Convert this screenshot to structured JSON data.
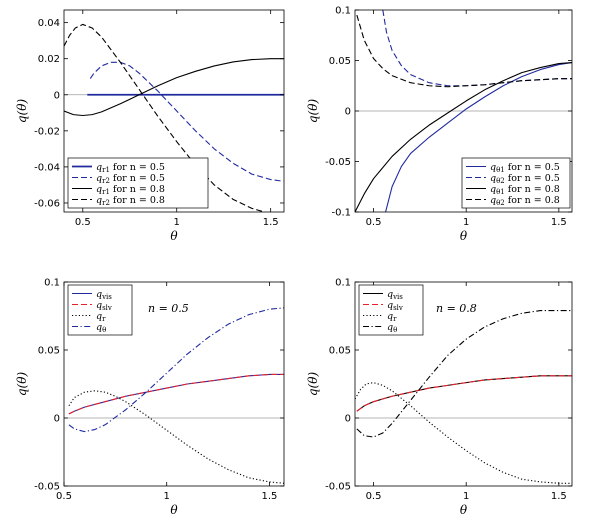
{
  "colors": {
    "navy": "#1f2a9e",
    "red": "#e8202a",
    "black": "#000000",
    "zero_line": "#9e9e9e"
  },
  "chart_data": [
    {
      "type": "line",
      "xlabel": "θ",
      "ylabel": "q(θ)",
      "xlim": [
        0.4,
        1.571
      ],
      "ylim": [
        -0.065,
        0.047
      ],
      "xticks": [
        0.5,
        1,
        1.5
      ],
      "xtick_labels": [
        "0.5",
        "1",
        "1.5"
      ],
      "yticks": [
        -0.06,
        -0.04,
        -0.02,
        0,
        0.02,
        0.04
      ],
      "ytick_labels": [
        "-0.06",
        "-0.04",
        "-0.02",
        "0",
        "0.02",
        "0.04"
      ],
      "zero_line": true,
      "legend": "bottom-left",
      "series": [
        {
          "name": "q_r1 for n = 0.5",
          "label_main": "q",
          "label_sub": "r1",
          "label_rest": " for n = 0.5",
          "color": "#1f2a9e",
          "dash": "solid",
          "width": 1.8,
          "x": [
            0.524,
            0.6,
            0.8,
            1.0,
            1.2,
            1.4,
            1.571
          ],
          "y": [
            0,
            0,
            0,
            0,
            0,
            0,
            0
          ]
        },
        {
          "name": "q_r2 for n = 0.5",
          "label_main": "q",
          "label_sub": "r2",
          "label_rest": " for n = 0.5",
          "color": "#1f2a9e",
          "dash": "dashed",
          "width": 1.1,
          "x": [
            0.54,
            0.56,
            0.6,
            0.65,
            0.7,
            0.75,
            0.8,
            0.9,
            1.0,
            1.1,
            1.2,
            1.3,
            1.4,
            1.5,
            1.571
          ],
          "y": [
            0.009,
            0.012,
            0.016,
            0.018,
            0.018,
            0.016,
            0.012,
            0.002,
            -0.009,
            -0.02,
            -0.03,
            -0.038,
            -0.044,
            -0.047,
            -0.048
          ]
        },
        {
          "name": "q_r1 for n = 0.8",
          "label_main": "q",
          "label_sub": "r1",
          "label_rest": " for n = 0.8",
          "color": "#000000",
          "dash": "solid",
          "width": 1.1,
          "x": [
            0.4,
            0.45,
            0.5,
            0.55,
            0.6,
            0.7,
            0.8,
            0.9,
            1.0,
            1.1,
            1.2,
            1.3,
            1.4,
            1.5,
            1.571
          ],
          "y": [
            -0.009,
            -0.011,
            -0.0115,
            -0.011,
            -0.0095,
            -0.005,
            0,
            0.005,
            0.0095,
            0.013,
            0.016,
            0.0182,
            0.0195,
            0.02,
            0.02
          ]
        },
        {
          "name": "q_r2 for n = 0.8",
          "label_main": "q",
          "label_sub": "r2",
          "label_rest": " for n = 0.8",
          "color": "#000000",
          "dash": "dashed",
          "width": 1.1,
          "x": [
            0.4,
            0.43,
            0.46,
            0.5,
            0.55,
            0.6,
            0.7,
            0.8,
            0.9,
            1.0,
            1.1,
            1.2,
            1.3,
            1.4,
            1.5,
            1.571
          ],
          "y": [
            0.027,
            0.033,
            0.037,
            0.039,
            0.037,
            0.032,
            0.018,
            0.003,
            -0.012,
            -0.026,
            -0.039,
            -0.05,
            -0.058,
            -0.063,
            -0.066,
            -0.067
          ]
        }
      ]
    },
    {
      "type": "line",
      "xlabel": "θ",
      "ylabel": "q(θ)",
      "xlim": [
        0.4,
        1.571
      ],
      "ylim": [
        -0.1,
        0.1
      ],
      "xticks": [
        0.5,
        1,
        1.5
      ],
      "xtick_labels": [
        "0.5",
        "1",
        "1.5"
      ],
      "yticks": [
        -0.1,
        -0.05,
        0,
        0.05,
        0.1
      ],
      "ytick_labels": [
        "-0.1",
        "-0.05",
        "0",
        "0.05",
        "0.1"
      ],
      "zero_line": true,
      "legend": "bottom-right",
      "series": [
        {
          "name": "q_θ1 for n = 0.5",
          "label_main": "q",
          "label_sub": "θ1",
          "label_rest": " for n = 0.5",
          "color": "#1f2a9e",
          "dash": "solid",
          "width": 1.1,
          "x": [
            0.565,
            0.6,
            0.65,
            0.7,
            0.8,
            0.9,
            1.0,
            1.1,
            1.2,
            1.3,
            1.4,
            1.5,
            1.571
          ],
          "y": [
            -0.1,
            -0.075,
            -0.055,
            -0.042,
            -0.026,
            -0.012,
            0.002,
            0.014,
            0.025,
            0.034,
            0.041,
            0.046,
            0.048
          ]
        },
        {
          "name": "q_θ2 for n = 0.5",
          "label_main": "q",
          "label_sub": "θ2",
          "label_rest": " for n = 0.5",
          "color": "#1f2a9e",
          "dash": "dashed",
          "width": 1.1,
          "x": [
            0.55,
            0.57,
            0.6,
            0.65,
            0.7,
            0.8,
            0.9,
            1.0,
            1.1,
            1.2,
            1.3,
            1.4,
            1.5,
            1.571
          ],
          "y": [
            0.1,
            0.078,
            0.06,
            0.045,
            0.036,
            0.028,
            0.025,
            0.025,
            0.026,
            0.028,
            0.03,
            0.031,
            0.032,
            0.032
          ]
        },
        {
          "name": "q_θ1 for n = 0.8",
          "label_main": "q",
          "label_sub": "θ1",
          "label_rest": " for n = 0.8",
          "color": "#000000",
          "dash": "solid",
          "width": 1.1,
          "x": [
            0.4,
            0.45,
            0.5,
            0.6,
            0.7,
            0.8,
            0.9,
            1.0,
            1.1,
            1.2,
            1.3,
            1.4,
            1.5,
            1.571
          ],
          "y": [
            -0.1,
            -0.082,
            -0.067,
            -0.045,
            -0.028,
            -0.014,
            -0.002,
            0.01,
            0.021,
            0.03,
            0.038,
            0.043,
            0.047,
            0.048
          ]
        },
        {
          "name": "q_θ2 for n = 0.8",
          "label_main": "q",
          "label_sub": "θ2",
          "label_rest": " for n = 0.8",
          "color": "#000000",
          "dash": "dashed",
          "width": 1.1,
          "x": [
            0.41,
            0.45,
            0.5,
            0.55,
            0.6,
            0.7,
            0.8,
            0.9,
            1.0,
            1.1,
            1.2,
            1.3,
            1.4,
            1.5,
            1.571
          ],
          "y": [
            0.095,
            0.07,
            0.052,
            0.042,
            0.035,
            0.028,
            0.025,
            0.024,
            0.025,
            0.026,
            0.028,
            0.03,
            0.031,
            0.032,
            0.032
          ]
        }
      ]
    },
    {
      "type": "line",
      "xlabel": "θ",
      "ylabel": "q(θ)",
      "xlim": [
        0.5,
        1.571
      ],
      "ylim": [
        -0.05,
        0.1
      ],
      "xticks": [
        0.5,
        1,
        1.5
      ],
      "xtick_labels": [
        "0.5",
        "1",
        "1.5"
      ],
      "yticks": [
        -0.05,
        0,
        0.05,
        0.1
      ],
      "ytick_labels": [
        "-0.05",
        "0",
        "0.05",
        "0.1"
      ],
      "zero_line": true,
      "legend": "top-left",
      "annotation": "n = 0.5",
      "series": [
        {
          "name": "q_vis",
          "label_main": "q",
          "label_sub": "vis",
          "label_rest": "",
          "color": "#1f2a9e",
          "dash": "solid",
          "width": 1.1,
          "x": [
            0.524,
            0.55,
            0.6,
            0.7,
            0.8,
            0.9,
            1.0,
            1.1,
            1.2,
            1.3,
            1.4,
            1.5,
            1.571
          ],
          "y": [
            0.003,
            0.005,
            0.008,
            0.012,
            0.016,
            0.019,
            0.022,
            0.025,
            0.027,
            0.029,
            0.031,
            0.032,
            0.032
          ]
        },
        {
          "name": "q_slv",
          "label_main": "q",
          "label_sub": "slv",
          "label_rest": "",
          "color": "#e8202a",
          "dash": "dashed",
          "width": 1.1,
          "x": [
            0.524,
            0.55,
            0.6,
            0.7,
            0.8,
            0.9,
            1.0,
            1.1,
            1.2,
            1.3,
            1.4,
            1.5,
            1.571
          ],
          "y": [
            0.003,
            0.005,
            0.008,
            0.012,
            0.016,
            0.019,
            0.022,
            0.025,
            0.027,
            0.029,
            0.031,
            0.032,
            0.032
          ]
        },
        {
          "name": "q_r",
          "label_main": "q",
          "label_sub": "r",
          "label_rest": "",
          "color": "#000000",
          "dash": "dotted",
          "width": 1.1,
          "x": [
            0.524,
            0.55,
            0.6,
            0.65,
            0.7,
            0.75,
            0.8,
            0.9,
            1.0,
            1.1,
            1.2,
            1.3,
            1.4,
            1.5,
            1.571
          ],
          "y": [
            0.009,
            0.015,
            0.019,
            0.02,
            0.019,
            0.016,
            0.012,
            0.002,
            -0.009,
            -0.02,
            -0.03,
            -0.038,
            -0.044,
            -0.047,
            -0.048
          ]
        },
        {
          "name": "q_θ",
          "label_main": "q",
          "label_sub": "θ",
          "label_rest": "",
          "color": "#1f2a9e",
          "dash": "dashdot",
          "width": 1.1,
          "x": [
            0.524,
            0.55,
            0.6,
            0.65,
            0.7,
            0.8,
            0.9,
            1.0,
            1.1,
            1.2,
            1.3,
            1.4,
            1.5,
            1.571
          ],
          "y": [
            -0.005,
            -0.008,
            -0.01,
            -0.0085,
            -0.005,
            0.006,
            0.019,
            0.033,
            0.047,
            0.059,
            0.069,
            0.076,
            0.08,
            0.081
          ]
        }
      ]
    },
    {
      "type": "line",
      "xlabel": "θ",
      "ylabel": "q(θ)",
      "xlim": [
        0.4,
        1.571
      ],
      "ylim": [
        -0.05,
        0.1
      ],
      "xticks": [
        0.5,
        1,
        1.5
      ],
      "xtick_labels": [
        "0.5",
        "1",
        "1.5"
      ],
      "yticks": [
        -0.05,
        0,
        0.05,
        0.1
      ],
      "ytick_labels": [
        "-0.05",
        "0",
        "0.05",
        "0.1"
      ],
      "zero_line": true,
      "legend": "top-left",
      "annotation": "n = 0.8",
      "series": [
        {
          "name": "q_vis",
          "label_main": "q",
          "label_sub": "vis",
          "label_rest": "",
          "color": "#000000",
          "dash": "solid",
          "width": 1.1,
          "x": [
            0.41,
            0.45,
            0.5,
            0.6,
            0.7,
            0.8,
            0.9,
            1.0,
            1.1,
            1.2,
            1.3,
            1.4,
            1.5,
            1.571
          ],
          "y": [
            0.005,
            0.009,
            0.012,
            0.016,
            0.019,
            0.022,
            0.024,
            0.026,
            0.028,
            0.029,
            0.03,
            0.031,
            0.031,
            0.031
          ]
        },
        {
          "name": "q_slv",
          "label_main": "q",
          "label_sub": "slv",
          "label_rest": "",
          "color": "#e8202a",
          "dash": "dashed",
          "width": 1.1,
          "x": [
            0.41,
            0.45,
            0.5,
            0.6,
            0.7,
            0.8,
            0.9,
            1.0,
            1.1,
            1.2,
            1.3,
            1.4,
            1.5,
            1.571
          ],
          "y": [
            0.005,
            0.009,
            0.012,
            0.016,
            0.019,
            0.022,
            0.024,
            0.026,
            0.028,
            0.029,
            0.03,
            0.031,
            0.031,
            0.031
          ]
        },
        {
          "name": "q_r",
          "label_main": "q",
          "label_sub": "r",
          "label_rest": "",
          "color": "#000000",
          "dash": "dotted",
          "width": 1.1,
          "x": [
            0.4,
            0.43,
            0.46,
            0.5,
            0.55,
            0.6,
            0.7,
            0.8,
            0.9,
            1.0,
            1.1,
            1.2,
            1.3,
            1.4,
            1.5,
            1.571
          ],
          "y": [
            0.014,
            0.021,
            0.025,
            0.026,
            0.024,
            0.02,
            0.009,
            -0.003,
            -0.014,
            -0.024,
            -0.033,
            -0.04,
            -0.045,
            -0.047,
            -0.048,
            -0.048
          ]
        },
        {
          "name": "q_θ",
          "label_main": "q",
          "label_sub": "θ",
          "label_rest": "",
          "color": "#000000",
          "dash": "dashdot",
          "width": 1.1,
          "x": [
            0.41,
            0.45,
            0.5,
            0.55,
            0.6,
            0.7,
            0.8,
            0.9,
            1.0,
            1.1,
            1.2,
            1.3,
            1.4,
            1.5,
            1.571
          ],
          "y": [
            -0.008,
            -0.013,
            -0.014,
            -0.011,
            -0.004,
            0.013,
            0.03,
            0.046,
            0.058,
            0.067,
            0.073,
            0.077,
            0.079,
            0.079,
            0.079
          ]
        }
      ]
    }
  ]
}
